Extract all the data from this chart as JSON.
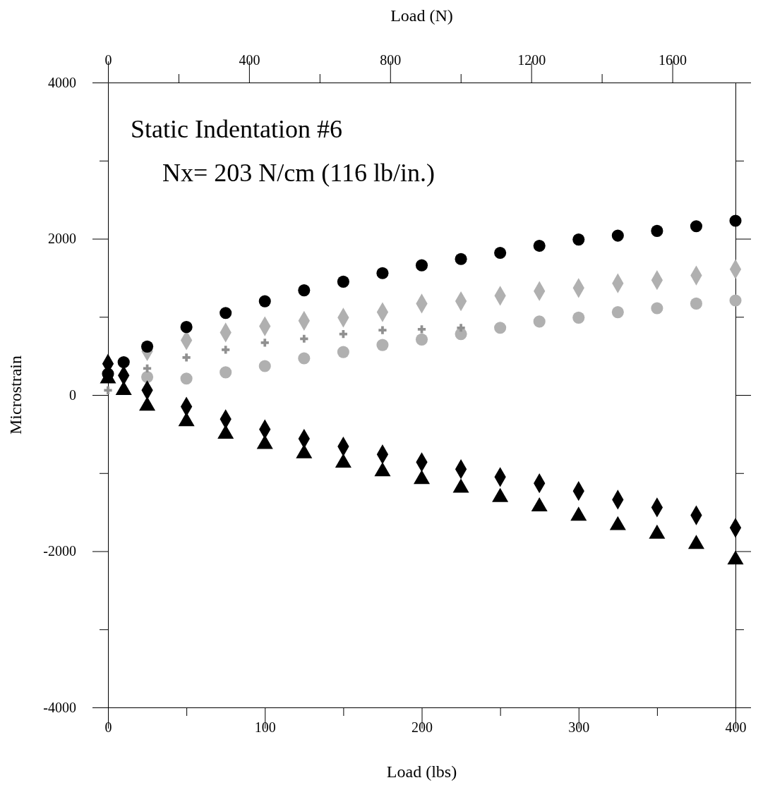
{
  "chart_data": {
    "type": "scatter",
    "xlabel": "Load (lbs)",
    "x2label": "Load (N)",
    "ylabel": "Microstrain",
    "annotations": [
      "Static Indentation #6",
      "Nx= 203 N/cm (116 lb/in.)"
    ],
    "xlim": [
      0,
      400
    ],
    "xticks": [
      0,
      {
        "value": 50,
        "label": null
      },
      100,
      {
        "value": 150,
        "label": null
      },
      200,
      {
        "value": 250,
        "label": null
      },
      300,
      {
        "value": 350,
        "label": null
      },
      400
    ],
    "x2lim": [
      0,
      1779
    ],
    "x2ticks": [
      0,
      {
        "value": 200,
        "label": null
      },
      400,
      {
        "value": 600,
        "label": null
      },
      800,
      {
        "value": 1000,
        "label": null
      },
      1200,
      {
        "value": 1400,
        "label": null
      },
      1600
    ],
    "ylim": [
      -4000,
      4000
    ],
    "yticks": [
      -4000,
      {
        "value": -3000,
        "label": null
      },
      -2000,
      {
        "value": -1000,
        "label": null
      },
      0,
      {
        "value": 1000,
        "label": null
      },
      2000,
      {
        "value": 3000,
        "label": null
      },
      4000
    ],
    "grid": false,
    "x": [
      0,
      10,
      25,
      50,
      75,
      100,
      125,
      150,
      175,
      200,
      225,
      250,
      275,
      300,
      325,
      350,
      375,
      400
    ],
    "series": [
      {
        "marker": "circle",
        "color": "#000000",
        "values": [
          270,
          420,
          620,
          870,
          1050,
          1200,
          1340,
          1450,
          1560,
          1660,
          1740,
          1820,
          1910,
          1990,
          2040,
          2100,
          2160,
          2230
        ]
      },
      {
        "marker": "diamond",
        "color": "#000000",
        "values": [
          400,
          250,
          60,
          -150,
          -310,
          -440,
          -560,
          -660,
          -760,
          -860,
          -950,
          -1050,
          -1130,
          -1230,
          -1340,
          -1440,
          -1540,
          -1700
        ]
      },
      {
        "marker": "triangle",
        "color": "#000000",
        "values": [
          210,
          60,
          -140,
          -340,
          -500,
          -630,
          -750,
          -870,
          -980,
          -1080,
          -1190,
          -1310,
          -1430,
          -1550,
          -1670,
          -1780,
          -1910,
          -2110
        ]
      },
      {
        "marker": "diamond",
        "color": "#b0b0b0",
        "values": [
          null,
          null,
          560,
          700,
          800,
          880,
          950,
          990,
          1060,
          1170,
          1200,
          1270,
          1330,
          1370,
          1430,
          1470,
          1530,
          1610
        ]
      },
      {
        "marker": "cross",
        "color": "#909090",
        "values": [
          60,
          null,
          340,
          480,
          580,
          670,
          720,
          780,
          830,
          840,
          860,
          null,
          null,
          null,
          null,
          null,
          null,
          null
        ]
      },
      {
        "marker": "circle",
        "color": "#b0b0b0",
        "values": [
          null,
          null,
          230,
          210,
          290,
          370,
          470,
          550,
          640,
          710,
          780,
          860,
          940,
          990,
          1060,
          1110,
          1170,
          1210
        ]
      }
    ]
  }
}
